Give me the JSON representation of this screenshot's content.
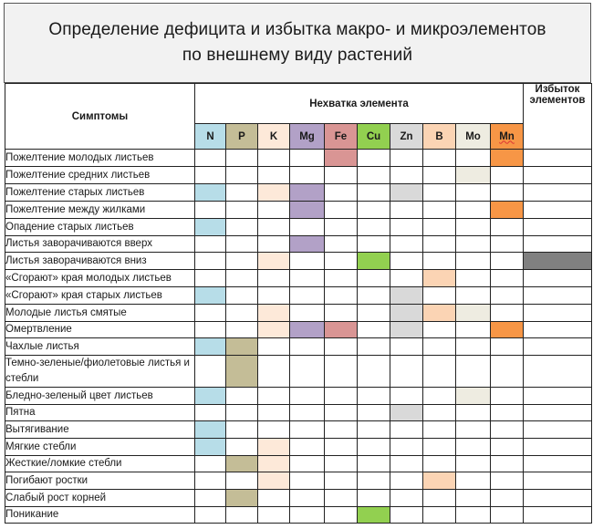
{
  "title": {
    "line1": "Определение дефицита и избытка макро- и микроэлементов",
    "line2": "по внешнему виду растений"
  },
  "header": {
    "symptoms": "Симптомы",
    "deficit": "Нехватка элемента",
    "excess_line1": "Избыток",
    "excess_line2": "элементов"
  },
  "elements": [
    {
      "symbol": "N",
      "color": "#b7dde8"
    },
    {
      "symbol": "P",
      "color": "#c4bd97"
    },
    {
      "symbol": "K",
      "color": "#fde9d9"
    },
    {
      "symbol": "Mg",
      "color": "#b2a1c7"
    },
    {
      "symbol": "Fe",
      "color": "#d99594"
    },
    {
      "symbol": "Cu",
      "color": "#92d050"
    },
    {
      "symbol": "Zn",
      "color": "#d9d9d9"
    },
    {
      "symbol": "B",
      "color": "#fbd4b4"
    },
    {
      "symbol": "Mo",
      "color": "#eeece1"
    },
    {
      "symbol": "Mn",
      "color": "#f79646"
    }
  ],
  "excess_color": "#808080",
  "rows": [
    {
      "symptom": "Пожелтение молодых листьев",
      "deficit": [
        "Fe",
        "Mn"
      ],
      "excess": false
    },
    {
      "symptom": "Пожелтение средних листьев",
      "deficit": [
        "Mo"
      ],
      "excess": false
    },
    {
      "symptom": "Пожелтение старых листьев",
      "deficit": [
        "N",
        "K",
        "Mg",
        "Zn"
      ],
      "excess": false
    },
    {
      "symptom": "Пожелтение между жилками",
      "deficit": [
        "Mg",
        "Mn"
      ],
      "excess": false
    },
    {
      "symptom": "Опадение старых листьев",
      "deficit": [
        "N"
      ],
      "excess": false
    },
    {
      "symptom": "Листья заворачиваются вверх",
      "deficit": [
        "Mg"
      ],
      "excess": false
    },
    {
      "symptom": "Листья заворачиваются вниз",
      "deficit": [
        "K",
        "Cu"
      ],
      "excess": true
    },
    {
      "symptom": "«Сгорают» края молодых листьев",
      "deficit": [
        "B"
      ],
      "excess": false
    },
    {
      "symptom": "«Сгорают» края старых листьев",
      "deficit": [
        "N",
        "Zn"
      ],
      "excess": false
    },
    {
      "symptom": "Молодые листья смятые",
      "deficit": [
        "K",
        "Zn",
        "B",
        "Mo"
      ],
      "excess": false
    },
    {
      "symptom": "Омертвление",
      "deficit": [
        "K",
        "Mg",
        "Fe",
        "Zn",
        "Mn"
      ],
      "excess": false
    },
    {
      "symptom": "Чахлые листья",
      "deficit": [
        "N",
        "P"
      ],
      "excess": false
    },
    {
      "symptom": "Темно-зеленые/фиолетовые листья и стебли",
      "deficit": [
        "P"
      ],
      "excess": false,
      "tall": true
    },
    {
      "symptom": "Бледно-зеленый цвет листьев",
      "deficit": [
        "N",
        "Mo"
      ],
      "excess": false
    },
    {
      "symptom": "Пятна",
      "deficit": [
        "Zn"
      ],
      "excess": false
    },
    {
      "symptom": "Вытягивание",
      "deficit": [
        "N"
      ],
      "excess": false
    },
    {
      "symptom": "Мягкие стебли",
      "deficit": [
        "N",
        "K"
      ],
      "excess": false
    },
    {
      "symptom": "Жесткие/ломкие стебли",
      "deficit": [
        "P",
        "K"
      ],
      "excess": false
    },
    {
      "symptom": "Погибают ростки",
      "deficit": [
        "K",
        "B"
      ],
      "excess": false
    },
    {
      "symptom": "Слабый рост корней",
      "deficit": [
        "P"
      ],
      "excess": false
    },
    {
      "symptom": "Поникание",
      "deficit": [
        "Cu"
      ],
      "excess": false
    }
  ]
}
